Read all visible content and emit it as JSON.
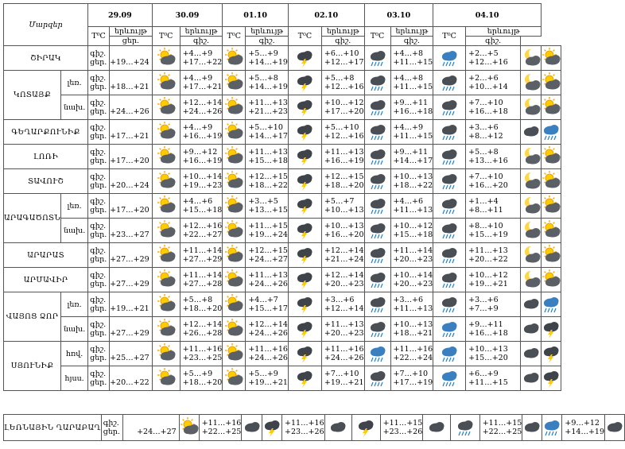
{
  "title": "Մարզեր",
  "dates": [
    "29.09",
    "30.09",
    "01.10",
    "02.10",
    "03.10",
    "04.10"
  ],
  "temp_label": "T⁰C",
  "weather_label": "երևույթ",
  "day_label": "գիշ.",
  "night_label": "ցեր.",
  "regions": [
    {
      "name": "ՇԻՐԱԿ",
      "rows": [
        {
          "sub": "",
          "dn": [
            "գիշ.",
            "ցեր."
          ],
          "d0": "+19…+24",
          "t": [
            "+4…+9\n+17…+22",
            "+5…+9\n+14…+19",
            "+6…+10\n+12…+17",
            "+4…+8\n+11…+15",
            "+2…+5\n+12…+16"
          ]
        }
      ]
    },
    {
      "name": "ԿՈՏԱՅՔ",
      "rows": [
        {
          "sub": "լեռ.",
          "dn": [
            "գիշ.",
            "ցեր."
          ],
          "d0": "+18…+21",
          "t": [
            "+4…+9\n+17…+21",
            "+5…+8\n+14…+19",
            "+5…+8\n+12…+16",
            "+4…+8\n+11…+15",
            "+2…+6\n+10…+14"
          ]
        },
        {
          "sub": "նախ.",
          "dn": [
            "գիշ.",
            "ցեր."
          ],
          "d0": "+24…+26",
          "t": [
            "+12…+14\n+24…+26",
            "+11…+13\n+21…+23",
            "+10…+12\n+17…+20",
            "+9…+11\n+16…+18",
            "+7…+10\n+16…+18"
          ]
        }
      ]
    },
    {
      "name": "ԳԵՂԱՐՔՈՒՆԻՔ",
      "rows": [
        {
          "sub": "",
          "dn": [
            "գիշ.",
            "ցեր."
          ],
          "d0": "+17…+21",
          "t": [
            "+4…+9\n+16…+19",
            "+5…+10\n+14…+17",
            "+5…+10\n+12…+16",
            "+4…+9\n+11…+15",
            "+3…+6\n+8…+12"
          ]
        }
      ]
    },
    {
      "name": "ԼՈՌԻ",
      "rows": [
        {
          "sub": "",
          "dn": [
            "գիշ.",
            "ցեր."
          ],
          "d0": "+17…+20",
          "t": [
            "+9…+12\n+16…+19",
            "+11…+13\n+15…+18",
            "+11…+13\n+16…+19",
            "+9…+11\n+14…+17",
            "+5…+8\n+13…+16"
          ]
        }
      ]
    },
    {
      "name": "ՏԱՎՈՒՇ",
      "rows": [
        {
          "sub": "",
          "dn": [
            "գիշ.",
            "ցեր."
          ],
          "d0": "+20…+24",
          "t": [
            "+10…+14\n+19…+23",
            "+12…+15\n+18…+22",
            "+12…+15\n+18…+20",
            "+10…+13\n+18…+22",
            "+7…+10\n+16…+20"
          ]
        }
      ]
    },
    {
      "name": "ԱՐԱԳԱԾՈՏՆ",
      "rows": [
        {
          "sub": "լեռ.",
          "dn": [
            "գիշ.",
            "ցեր."
          ],
          "d0": "+17…+20",
          "t": [
            "+4…+6\n+15…+18",
            "+3…+5\n+13…+15",
            "+5…+7\n+10…+13",
            "+4…+6\n+11…+13",
            "+1…+4\n+8…+11"
          ]
        },
        {
          "sub": "նախ.",
          "dn": [
            "գիշ.",
            "ցեր."
          ],
          "d0": "+23…+27",
          "t": [
            "+12…+16\n+22…+27",
            "+11…+15\n+19…+24",
            "+10…+13\n+16…+20",
            "+10…+12\n+15…+18",
            "+8…+10\n+15…+19"
          ]
        }
      ]
    },
    {
      "name": "ԱՐԱՐԱՏ",
      "rows": [
        {
          "sub": "",
          "dn": [
            "գիշ.",
            "ցեր."
          ],
          "d0": "+27…+29",
          "t": [
            "+11…+14\n+27…+29",
            "+12…+15\n+24…+27",
            "+12…+14\n+21…+24",
            "+11…+14\n+20…+23",
            "+11…+13\n+20…+22"
          ]
        }
      ]
    },
    {
      "name": "ԱՐՄԱՎԻՐ",
      "rows": [
        {
          "sub": "",
          "dn": [
            "գիշ.",
            "ցեր."
          ],
          "d0": "+27…+29",
          "t": [
            "+11…+14\n+27…+28",
            "+11…+13\n+24…+26",
            "+12…+14\n+20…+23",
            "+10…+14\n+20…+23",
            "+10…+12\n+19…+21"
          ]
        }
      ]
    },
    {
      "name": "ՎԱՅՈՑ ՁՈՐ",
      "rows": [
        {
          "sub": "լեռ.",
          "dn": [
            "գիշ.",
            "ցեր."
          ],
          "d0": "+19…+21",
          "t": [
            "+5…+8\n+18…+20",
            "+4…+7\n+15…+17",
            "+3…+6\n+12…+14",
            "+3…+6\n+11…+13",
            "+3…+6\n+7…+9"
          ]
        },
        {
          "sub": "նախ.",
          "dn": [
            "գիշ.",
            "ցեր."
          ],
          "d0": "+27…+29",
          "t": [
            "+12…+14\n+26…+28",
            "+12…+14\n+24…+26",
            "+11…+13\n+20…+23",
            "+10…+13\n+18…+21",
            "+9…+11\n+16…+18"
          ]
        }
      ]
    },
    {
      "name": "ՍՅՈՒՆԻՔ",
      "rows": [
        {
          "sub": "հռվ.",
          "dn": [
            "գիշ.",
            "ցեր."
          ],
          "d0": "+25…+27",
          "t": [
            "+11…+16\n+23…+25",
            "+11…+16\n+24…+26",
            "+11…+16\n+24…+26",
            "+11…+16\n+22…+24",
            "+10…+13\n+15…+20"
          ]
        },
        {
          "sub": "հյսս.",
          "dn": [
            "գիշ.",
            "ցեր."
          ],
          "d0": "+20…+22",
          "t": [
            "+5…+9\n+18…+20",
            "+5…+9\n+19…+21",
            "+7…+10\n+19…+21",
            "+7…+10\n+17…+19",
            "+6…+9\n+11…+15"
          ]
        }
      ]
    }
  ],
  "karabakh": {
    "name": "ԼԵՌՆԱՅԻՆ ՂԱՐԱԲԱՂ",
    "dn": [
      "գիշ.",
      "ցեր."
    ],
    "d0": "+24…+27",
    "t": [
      "+11…+16\n+22…+25",
      "+11…+16\n+23…+26",
      "+11…+15\n+23…+26",
      "+11…+15\n+22…+25",
      "+9…+12\n+14…+19"
    ]
  },
  "icon_legend": {
    "sun": "sun-icon",
    "sun_cloud": "sun-behind-cloud-icon",
    "cloud": "cloud-icon",
    "rain": "rain-cloud-icon",
    "storm": "thunderstorm-icon",
    "moon_cloud": "moon-cloud-icon",
    "sleet": "sleet-cloud-icon"
  }
}
